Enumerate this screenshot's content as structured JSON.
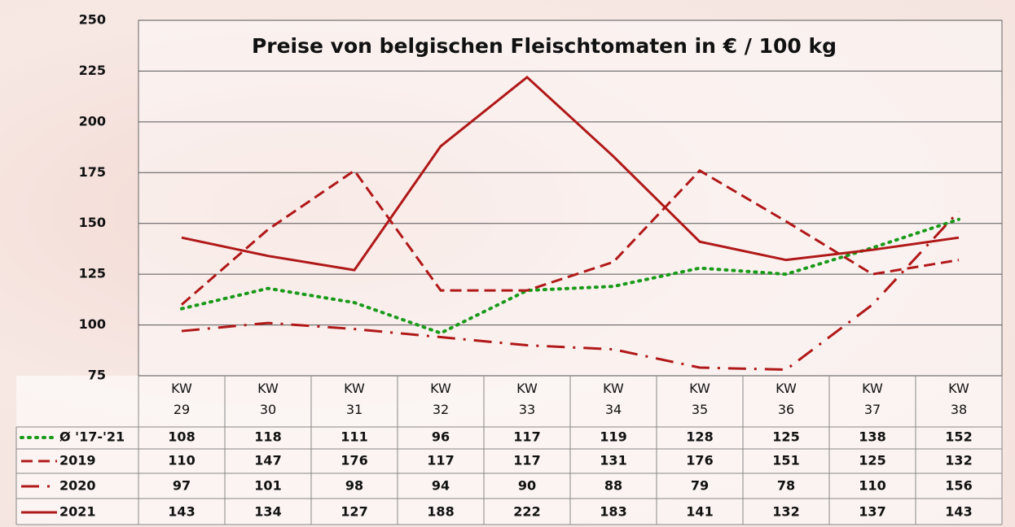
{
  "chart_data": {
    "type": "line",
    "title": "Preise von belgischen Fleischtomaten in € / 100 kg",
    "categories": [
      "KW 29",
      "KW 30",
      "KW 31",
      "KW 32",
      "KW 33",
      "KW 34",
      "KW 35",
      "KW 36",
      "KW 37",
      "KW 38"
    ],
    "series": [
      {
        "name": "Ø '17-'21",
        "color": "#1a9a1a",
        "style": "dotted",
        "values": [
          108,
          118,
          111,
          96,
          117,
          119,
          128,
          125,
          138,
          152
        ]
      },
      {
        "name": "2019",
        "color": "#b01818",
        "style": "dashed",
        "values": [
          110,
          147,
          176,
          117,
          117,
          131,
          176,
          151,
          125,
          132
        ]
      },
      {
        "name": "2020",
        "color": "#b01818",
        "style": "dashdot",
        "values": [
          97,
          101,
          98,
          94,
          90,
          88,
          79,
          78,
          110,
          156
        ]
      },
      {
        "name": "2021",
        "color": "#b01818",
        "style": "solid",
        "values": [
          143,
          134,
          127,
          188,
          222,
          183,
          141,
          132,
          137,
          143
        ]
      }
    ],
    "ylim": [
      75,
      250
    ],
    "yticks": [
      75,
      100,
      125,
      150,
      175,
      200,
      225,
      250
    ],
    "grid": true
  }
}
